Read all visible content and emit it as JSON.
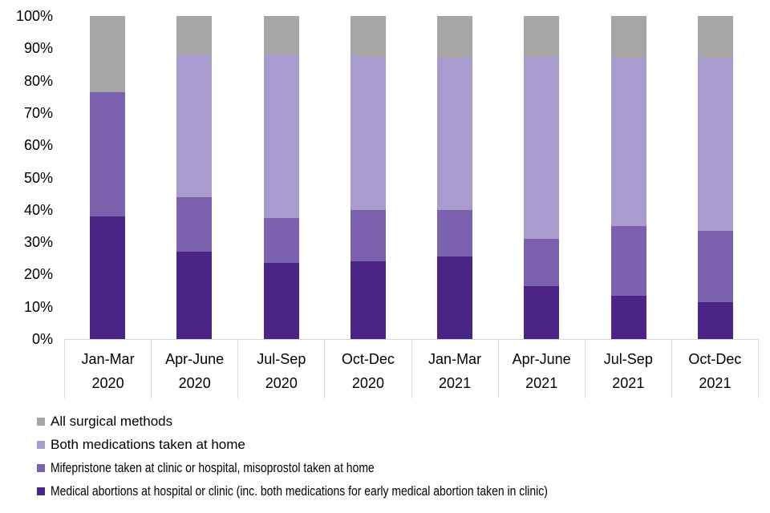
{
  "chart_data": {
    "type": "bar",
    "stacked": true,
    "percent_stacked": true,
    "title": "",
    "xlabel": "",
    "ylabel": "",
    "ylim": [
      0,
      100
    ],
    "grid": false,
    "legend_position": "bottom-left",
    "y_ticks": [
      "100%",
      "90%",
      "80%",
      "70%",
      "60%",
      "50%",
      "40%",
      "30%",
      "20%",
      "10%",
      "0%"
    ],
    "categories": [
      {
        "line1": "Jan-Mar",
        "line2": "2020"
      },
      {
        "line1": "Apr-June",
        "line2": "2020"
      },
      {
        "line1": "Jul-Sep",
        "line2": "2020"
      },
      {
        "line1": "Oct-Dec",
        "line2": "2020"
      },
      {
        "line1": "Jan-Mar",
        "line2": "2021"
      },
      {
        "line1": "Apr-June",
        "line2": "2021"
      },
      {
        "line1": "Jul-Sep",
        "line2": "2021"
      },
      {
        "line1": "Oct-Dec",
        "line2": "2021"
      }
    ],
    "series": [
      {
        "name": "Medical abortions at hospital or clinic (inc. both medications for early medical abortion taken in clinic)",
        "color": "#4b2487",
        "values": [
          38,
          27,
          23.5,
          24,
          25.5,
          16.5,
          13.5,
          11.5
        ]
      },
      {
        "name": "Mifepristone taken at clinic or hospital, misoprostol taken at home",
        "color": "#7b61ae",
        "values": [
          38.5,
          17,
          14,
          16,
          14.5,
          14.5,
          21.5,
          22
        ]
      },
      {
        "name": "Both medications taken at home",
        "color": "#a99bce",
        "values": [
          0,
          44,
          50.5,
          47.5,
          47,
          56.5,
          52,
          53.5
        ]
      },
      {
        "name": "All surgical methods",
        "color": "#a6a6a6",
        "values": [
          23.5,
          12,
          12,
          12.5,
          13,
          12.5,
          13,
          13
        ]
      }
    ],
    "legend": [
      {
        "label": "All surgical methods",
        "color": "#a6a6a6"
      },
      {
        "label": "Both medications taken at home",
        "color": "#a99bce"
      },
      {
        "label": "Mifepristone taken at clinic or hospital, misoprostol taken at home",
        "color": "#7b61ae"
      },
      {
        "label": "Medical abortions at hospital or clinic (inc. both medications for early medical abortion taken in clinic)",
        "color": "#4b2487"
      }
    ],
    "axis_color": "#d9d9d9",
    "text_color": "#000000"
  }
}
